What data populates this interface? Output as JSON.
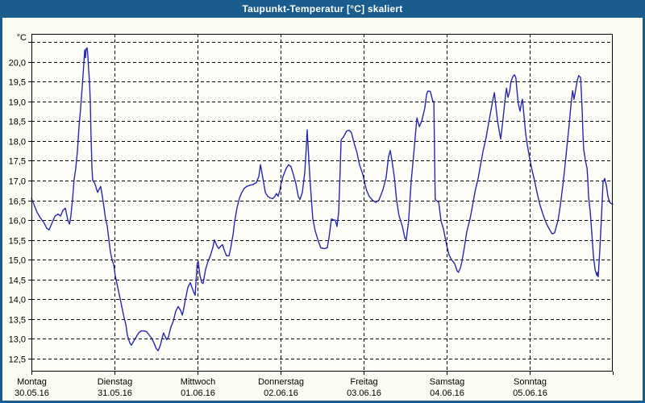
{
  "window": {
    "title": "Taupunkt-Temperatur [°C] skaliert"
  },
  "colors": {
    "chrome_blue": "#1b5c8e",
    "title_text": "#ffffff",
    "background": "#fafdf2",
    "plot_background": "#fdfef8",
    "grid": "#000000",
    "axis_text": "#000000",
    "line": "#2727b3"
  },
  "chart_data": {
    "type": "line",
    "title": "Taupunkt-Temperatur [°C] skaliert",
    "legend": "none",
    "grid": "dashed",
    "y_axis": {
      "unit_label": "°C",
      "tick_step": 0.5,
      "label_min": 12.5,
      "label_max": 20.0,
      "grid_values": [
        20.5,
        20.0,
        19.5,
        19.0,
        18.5,
        18.0,
        17.5,
        17.0,
        16.5,
        16.0,
        15.5,
        15.0,
        14.5,
        14.0,
        13.5,
        13.0,
        12.5
      ],
      "tick_labels": [
        "20,0",
        "19,5",
        "19,0",
        "18,5",
        "18,0",
        "17,5",
        "17,0",
        "16,5",
        "16,0",
        "15,5",
        "15,0",
        "14,5",
        "14,0",
        "13,5",
        "13,0",
        "12,5"
      ],
      "axis_top_value": 20.7,
      "axis_bottom_value": 12.17
    },
    "x_axis": {
      "range_hours": [
        0,
        168
      ],
      "day_length_hours": 24,
      "days": [
        {
          "name": "Montag",
          "date": "30.05.16"
        },
        {
          "name": "Dienstag",
          "date": "31.05.16"
        },
        {
          "name": "Mittwoch",
          "date": "01.06.16"
        },
        {
          "name": "Donnerstag",
          "date": "02.06.16"
        },
        {
          "name": "Freitag",
          "date": "03.06.16"
        },
        {
          "name": "Samstag",
          "date": "04.06.16"
        },
        {
          "name": "Sonntag",
          "date": "05.06.16"
        }
      ]
    },
    "series": [
      {
        "name": "Taupunkt-Temperatur",
        "color": "#2727b3",
        "points": [
          [
            0,
            16.55
          ],
          [
            0.7,
            16.4
          ],
          [
            1.6,
            16.2
          ],
          [
            2.6,
            16.05
          ],
          [
            3.5,
            15.95
          ],
          [
            4.4,
            15.8
          ],
          [
            5.1,
            15.75
          ],
          [
            5.8,
            15.9
          ],
          [
            6.8,
            16.1
          ],
          [
            7.7,
            16.15
          ],
          [
            8.4,
            16.1
          ],
          [
            9.1,
            16.25
          ],
          [
            9.8,
            16.3
          ],
          [
            10.5,
            16.0
          ],
          [
            11,
            15.9
          ],
          [
            11.4,
            16.1
          ],
          [
            11.9,
            16.55
          ],
          [
            12.3,
            17.0
          ],
          [
            12.8,
            17.3
          ],
          [
            13.3,
            17.75
          ],
          [
            13.7,
            18.3
          ],
          [
            14.2,
            18.8
          ],
          [
            14.7,
            19.4
          ],
          [
            15.1,
            19.9
          ],
          [
            15.4,
            20.3
          ],
          [
            15.6,
            20.1
          ],
          [
            15.8,
            20.32
          ],
          [
            16.1,
            20.35
          ],
          [
            16.3,
            20.15
          ],
          [
            16.5,
            19.85
          ],
          [
            16.8,
            19.45
          ],
          [
            17,
            19.0
          ],
          [
            17.2,
            18.2
          ],
          [
            17.5,
            17.3
          ],
          [
            17.7,
            17.0
          ],
          [
            18.2,
            16.95
          ],
          [
            18.6,
            16.85
          ],
          [
            19.1,
            16.7
          ],
          [
            19.6,
            16.78
          ],
          [
            20,
            16.85
          ],
          [
            20.5,
            16.6
          ],
          [
            21,
            16.3
          ],
          [
            21.4,
            16.05
          ],
          [
            21.9,
            15.85
          ],
          [
            22.4,
            15.5
          ],
          [
            22.8,
            15.2
          ],
          [
            23.3,
            15.0
          ],
          [
            23.8,
            14.87
          ],
          [
            24.2,
            14.6
          ],
          [
            24.7,
            14.4
          ],
          [
            25.2,
            14.2
          ],
          [
            25.9,
            13.9
          ],
          [
            26.6,
            13.6
          ],
          [
            27.3,
            13.35
          ],
          [
            27.7,
            13.1
          ],
          [
            28.4,
            12.9
          ],
          [
            28.9,
            12.84
          ],
          [
            29.6,
            12.95
          ],
          [
            30.3,
            13.05
          ],
          [
            31,
            13.15
          ],
          [
            31.7,
            13.2
          ],
          [
            32.6,
            13.2
          ],
          [
            33.3,
            13.18
          ],
          [
            34,
            13.1
          ],
          [
            34.7,
            13.02
          ],
          [
            35.4,
            12.9
          ],
          [
            36.1,
            12.75
          ],
          [
            36.6,
            12.7
          ],
          [
            37.3,
            12.85
          ],
          [
            37.7,
            13.0
          ],
          [
            38.2,
            13.15
          ],
          [
            38.7,
            13.05
          ],
          [
            39.1,
            12.98
          ],
          [
            39.6,
            13.05
          ],
          [
            40.3,
            13.3
          ],
          [
            41,
            13.45
          ],
          [
            41.7,
            13.7
          ],
          [
            42.4,
            13.82
          ],
          [
            43.1,
            13.72
          ],
          [
            43.6,
            13.6
          ],
          [
            44,
            13.75
          ],
          [
            44.5,
            14.0
          ],
          [
            45.2,
            14.3
          ],
          [
            45.9,
            14.42
          ],
          [
            46.4,
            14.3
          ],
          [
            46.8,
            14.2
          ],
          [
            47.3,
            14.1
          ],
          [
            47.6,
            14.5
          ],
          [
            47.9,
            14.9
          ],
          [
            48.2,
            14.95
          ],
          [
            48.7,
            14.6
          ],
          [
            49.2,
            14.42
          ],
          [
            49.6,
            14.4
          ],
          [
            50.3,
            14.75
          ],
          [
            51,
            14.95
          ],
          [
            51.7,
            15.1
          ],
          [
            52.4,
            15.3
          ],
          [
            52.9,
            15.5
          ],
          [
            53.6,
            15.35
          ],
          [
            54.1,
            15.28
          ],
          [
            54.8,
            15.35
          ],
          [
            55.2,
            15.38
          ],
          [
            55.9,
            15.2
          ],
          [
            56.4,
            15.1
          ],
          [
            57.1,
            15.1
          ],
          [
            57.6,
            15.3
          ],
          [
            58.3,
            15.65
          ],
          [
            58.7,
            15.95
          ],
          [
            59.4,
            16.3
          ],
          [
            60.1,
            16.55
          ],
          [
            60.8,
            16.7
          ],
          [
            61.5,
            16.8
          ],
          [
            62.2,
            16.85
          ],
          [
            63.1,
            16.88
          ],
          [
            64.1,
            16.9
          ],
          [
            65,
            16.95
          ],
          [
            65.7,
            17.1
          ],
          [
            66.2,
            17.4
          ],
          [
            66.6,
            17.2
          ],
          [
            67.1,
            16.95
          ],
          [
            67.6,
            16.7
          ],
          [
            68.3,
            16.6
          ],
          [
            69,
            16.56
          ],
          [
            69.7,
            16.54
          ],
          [
            70.4,
            16.6
          ],
          [
            70.8,
            16.67
          ],
          [
            71.3,
            16.6
          ],
          [
            71.8,
            16.75
          ],
          [
            72.2,
            16.95
          ],
          [
            72.7,
            17.1
          ],
          [
            73.6,
            17.3
          ],
          [
            74.3,
            17.4
          ],
          [
            75,
            17.35
          ],
          [
            75.7,
            17.15
          ],
          [
            76.4,
            16.93
          ],
          [
            77.1,
            16.6
          ],
          [
            77.6,
            16.52
          ],
          [
            78.3,
            16.7
          ],
          [
            79,
            17.2
          ],
          [
            79.4,
            17.8
          ],
          [
            79.7,
            18.28
          ],
          [
            80.2,
            17.47
          ],
          [
            80.6,
            16.9
          ],
          [
            81.3,
            16.05
          ],
          [
            82,
            15.73
          ],
          [
            82.9,
            15.47
          ],
          [
            83.6,
            15.3
          ],
          [
            84.6,
            15.28
          ],
          [
            85.5,
            15.3
          ],
          [
            86,
            15.56
          ],
          [
            86.7,
            16.03
          ],
          [
            87.4,
            16.0
          ],
          [
            87.8,
            16.0
          ],
          [
            88.3,
            15.84
          ],
          [
            88.8,
            16.2
          ],
          [
            89.2,
            17.2
          ],
          [
            89.5,
            18.03
          ],
          [
            90.2,
            18.1
          ],
          [
            90.6,
            18.17
          ],
          [
            91.1,
            18.25
          ],
          [
            91.8,
            18.27
          ],
          [
            92.5,
            18.2
          ],
          [
            93.4,
            17.9
          ],
          [
            94.1,
            17.7
          ],
          [
            94.8,
            17.4
          ],
          [
            95.8,
            17.15
          ],
          [
            96.5,
            16.87
          ],
          [
            96.9,
            16.74
          ],
          [
            97.6,
            16.6
          ],
          [
            98.6,
            16.5
          ],
          [
            99.5,
            16.45
          ],
          [
            100.4,
            16.5
          ],
          [
            101.6,
            16.77
          ],
          [
            102.5,
            17.07
          ],
          [
            103.2,
            17.6
          ],
          [
            103.7,
            17.76
          ],
          [
            104.2,
            17.5
          ],
          [
            104.9,
            17.07
          ],
          [
            105.5,
            16.52
          ],
          [
            106.2,
            16.12
          ],
          [
            107.2,
            15.84
          ],
          [
            107.9,
            15.55
          ],
          [
            108.3,
            15.5
          ],
          [
            109,
            15.97
          ],
          [
            109.7,
            16.93
          ],
          [
            110.7,
            17.89
          ],
          [
            111.4,
            18.58
          ],
          [
            112.1,
            18.36
          ],
          [
            112.8,
            18.5
          ],
          [
            113.7,
            18.84
          ],
          [
            114.2,
            19.18
          ],
          [
            114.6,
            19.26
          ],
          [
            115.3,
            19.25
          ],
          [
            116,
            19.0
          ],
          [
            116.3,
            19.0
          ],
          [
            116.7,
            16.52
          ],
          [
            117.7,
            16.45
          ],
          [
            118.4,
            15.97
          ],
          [
            119.1,
            15.77
          ],
          [
            120,
            15.36
          ],
          [
            120.7,
            15.12
          ],
          [
            121.4,
            15.0
          ],
          [
            122.3,
            14.9
          ],
          [
            123,
            14.72
          ],
          [
            123.4,
            14.68
          ],
          [
            124,
            14.8
          ],
          [
            124.4,
            14.95
          ],
          [
            125.1,
            15.3
          ],
          [
            125.8,
            15.7
          ],
          [
            126.8,
            16.05
          ],
          [
            127.5,
            16.38
          ],
          [
            128.2,
            16.72
          ],
          [
            129.1,
            17.06
          ],
          [
            129.8,
            17.4
          ],
          [
            130.5,
            17.74
          ],
          [
            131.4,
            18.08
          ],
          [
            132.1,
            18.43
          ],
          [
            132.8,
            18.77
          ],
          [
            133.5,
            19.1
          ],
          [
            133.8,
            19.22
          ],
          [
            134.2,
            18.9
          ],
          [
            134.7,
            18.5
          ],
          [
            135.2,
            18.25
          ],
          [
            135.6,
            18.05
          ],
          [
            136.1,
            18.4
          ],
          [
            136.6,
            18.8
          ],
          [
            137,
            19.15
          ],
          [
            137.3,
            19.33
          ],
          [
            137.7,
            19.1
          ],
          [
            138.2,
            19.25
          ],
          [
            138.6,
            19.5
          ],
          [
            139.1,
            19.62
          ],
          [
            139.6,
            19.67
          ],
          [
            140,
            19.6
          ],
          [
            140.3,
            19.3
          ],
          [
            140.7,
            18.95
          ],
          [
            141.2,
            18.75
          ],
          [
            141.7,
            19.0
          ],
          [
            141.9,
            19.05
          ],
          [
            142.4,
            18.6
          ],
          [
            142.8,
            18.2
          ],
          [
            143.3,
            17.9
          ],
          [
            144,
            17.55
          ],
          [
            144.7,
            17.25
          ],
          [
            145.4,
            17.0
          ],
          [
            146.1,
            16.7
          ],
          [
            147,
            16.37
          ],
          [
            148,
            16.1
          ],
          [
            148.9,
            15.9
          ],
          [
            149.8,
            15.75
          ],
          [
            150.5,
            15.65
          ],
          [
            151.2,
            15.68
          ],
          [
            152.2,
            16.0
          ],
          [
            152.9,
            16.4
          ],
          [
            153.6,
            16.9
          ],
          [
            154,
            17.2
          ],
          [
            154.7,
            17.8
          ],
          [
            155.4,
            18.4
          ],
          [
            155.9,
            18.9
          ],
          [
            156.4,
            19.27
          ],
          [
            156.8,
            19.05
          ],
          [
            157.3,
            19.3
          ],
          [
            157.8,
            19.55
          ],
          [
            158.2,
            19.65
          ],
          [
            158.7,
            19.6
          ],
          [
            158.9,
            19.3
          ],
          [
            159.2,
            18.7
          ],
          [
            159.4,
            18.15
          ],
          [
            159.6,
            17.8
          ],
          [
            160.1,
            17.5
          ],
          [
            160.6,
            17.3
          ],
          [
            160.8,
            17.0
          ],
          [
            161,
            16.6
          ],
          [
            161.5,
            16.2
          ],
          [
            162,
            15.6
          ],
          [
            162.4,
            15.1
          ],
          [
            162.9,
            14.75
          ],
          [
            163.4,
            14.6
          ],
          [
            163.6,
            14.68
          ],
          [
            163.8,
            14.57
          ],
          [
            164.3,
            15.3
          ],
          [
            164.8,
            16.2
          ],
          [
            165.2,
            16.97
          ],
          [
            165.7,
            17.05
          ],
          [
            166.2,
            16.85
          ],
          [
            166.6,
            16.6
          ],
          [
            167.1,
            16.45
          ],
          [
            167.5,
            16.42
          ],
          [
            168,
            16.4
          ]
        ]
      }
    ]
  }
}
